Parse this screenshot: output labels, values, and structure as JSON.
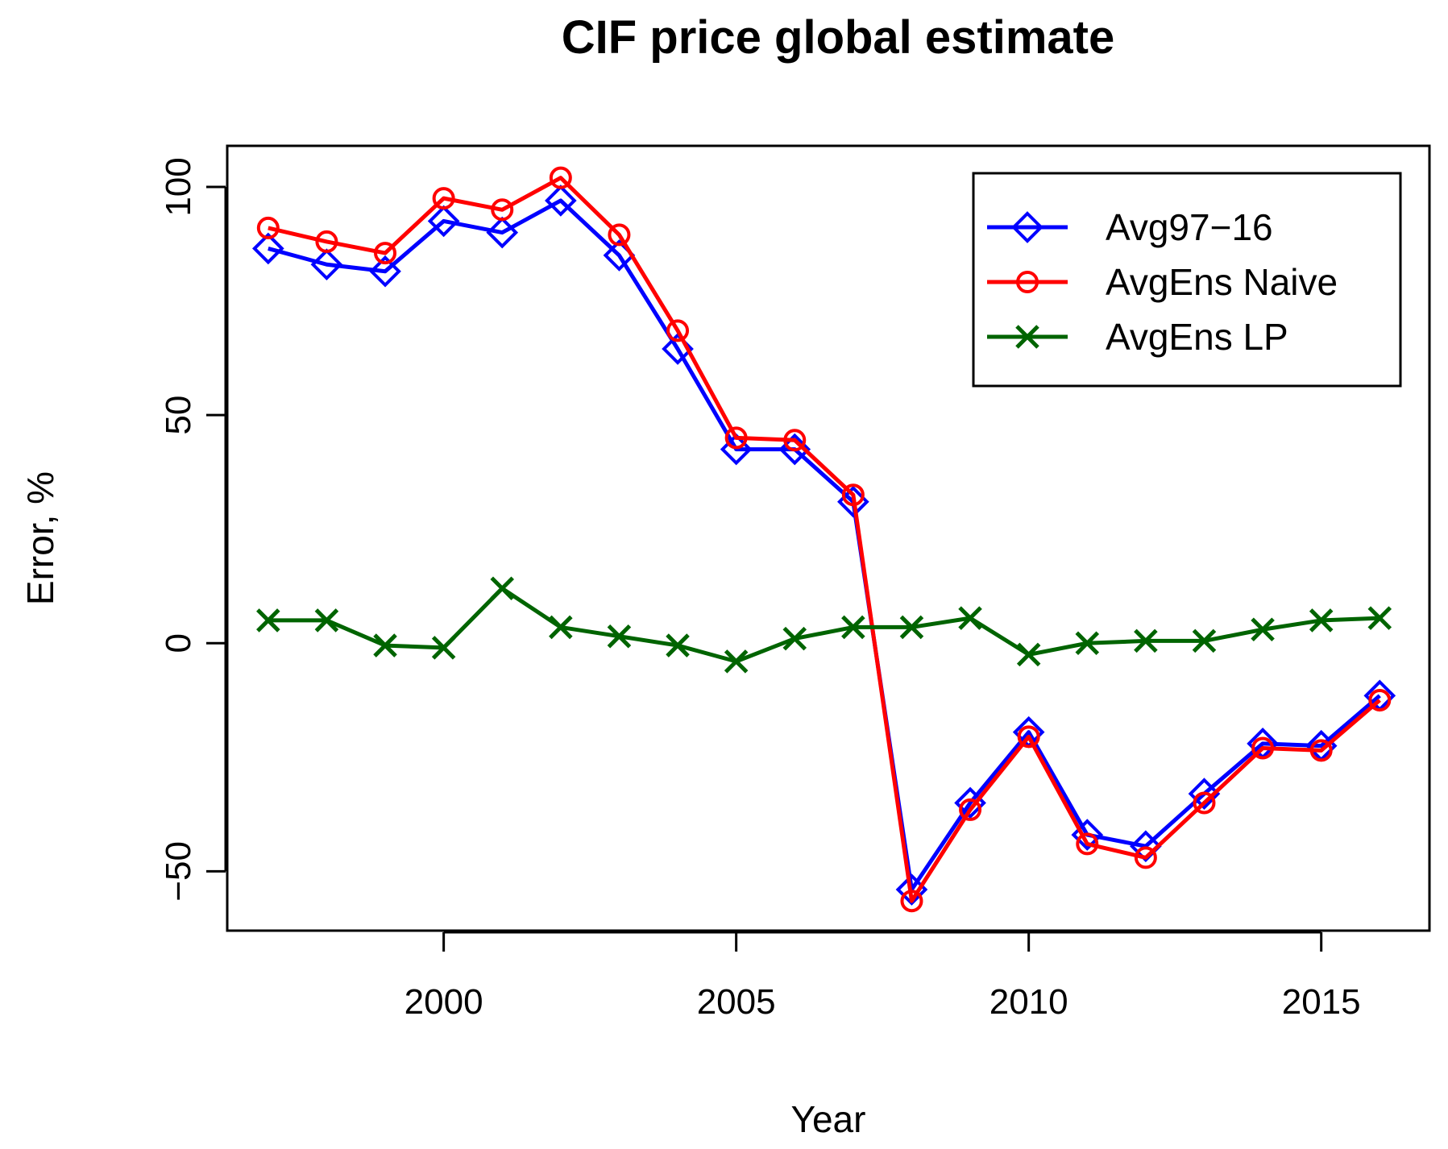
{
  "chart_data": {
    "type": "line",
    "title": "CIF price global estimate",
    "xlabel": "Year",
    "ylabel": "Error, %",
    "xlim": [
      1996.3,
      2016.85
    ],
    "ylim": [
      -63,
      109
    ],
    "x_ticks": [
      2000,
      2005,
      2010,
      2015
    ],
    "y_ticks": [
      -50,
      0,
      50,
      100
    ],
    "grid": false,
    "legend_position": "top-right",
    "x": [
      1997,
      1998,
      1999,
      2000,
      2001,
      2002,
      2003,
      2004,
      2005,
      2006,
      2007,
      2008,
      2009,
      2010,
      2011,
      2012,
      2013,
      2014,
      2015,
      2016
    ],
    "series": [
      {
        "name": "Avg97−16",
        "color": "#0000ff",
        "marker": "diamond",
        "values": [
          86.5,
          83,
          81.5,
          92.5,
          90,
          97,
          85,
          64.5,
          42.5,
          42.5,
          31,
          -54,
          -35,
          -19.5,
          -42,
          -44.5,
          -33,
          -22,
          -22.5,
          -11.5
        ]
      },
      {
        "name": "AvgEns Naive",
        "color": "#ff0000",
        "marker": "circle",
        "values": [
          91,
          88,
          85.5,
          97.5,
          95,
          102,
          89.5,
          68.5,
          45,
          44.5,
          32.5,
          -56.5,
          -36.5,
          -20.5,
          -44,
          -47,
          -35,
          -23,
          -23.5,
          -12.5
        ]
      },
      {
        "name": "AvgEns LP",
        "color": "#006400",
        "marker": "x",
        "values": [
          5,
          5,
          -0.5,
          -1,
          12,
          3.5,
          1.5,
          -0.5,
          -4,
          1,
          3.5,
          3.5,
          5.5,
          -2.5,
          0,
          0.5,
          0.5,
          3,
          5,
          5.5
        ]
      }
    ]
  }
}
